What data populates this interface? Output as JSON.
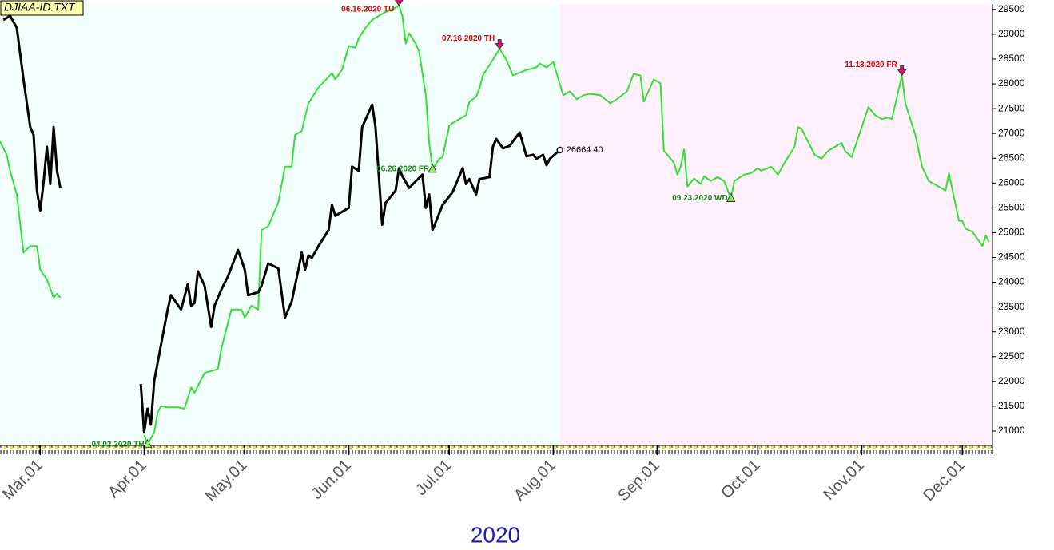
{
  "chart_data": {
    "type": "line",
    "file_label": "DJIAA-ID.TXT",
    "xlabel": "2020",
    "xlim": [
      "2020-02-18",
      "2020-12-10"
    ],
    "ylim": [
      20710,
      29610
    ],
    "yticks": [
      21000,
      21500,
      22000,
      22500,
      23000,
      23500,
      24000,
      24500,
      25000,
      25500,
      26000,
      26500,
      27000,
      27500,
      28000,
      28500,
      29000,
      29500
    ],
    "xticks": [
      {
        "value": "2020-03-01",
        "label": "Mar.01"
      },
      {
        "value": "2020-04-01",
        "label": "Apr.01"
      },
      {
        "value": "2020-05-01",
        "label": "May.01"
      },
      {
        "value": "2020-06-01",
        "label": "Jun.01"
      },
      {
        "value": "2020-07-01",
        "label": "Jul.01"
      },
      {
        "value": "2020-08-01",
        "label": "Aug.01"
      },
      {
        "value": "2020-09-01",
        "label": "Sep.01"
      },
      {
        "value": "2020-10-01",
        "label": "Oct.01"
      },
      {
        "value": "2020-11-01",
        "label": "Nov.01"
      },
      {
        "value": "2020-12-01",
        "label": "Dec.01"
      }
    ],
    "series": [
      {
        "color": "#33e033",
        "x": [
          "2020-02-18",
          "2020-02-20",
          "2020-02-21",
          "2020-02-23",
          "2020-02-25",
          "2020-02-27",
          "2020-02-29",
          "2020-03-01",
          "2020-03-03",
          "2020-03-05",
          "2020-03-06",
          "2020-03-07"
        ],
        "values": [
          26840,
          26570,
          26250,
          25770,
          24600,
          24730,
          24730,
          24250,
          24060,
          23690,
          23770,
          23690
        ]
      },
      {
        "color": "#33e033",
        "x": [
          "2020-04-01",
          "2020-04-02",
          "2020-04-04",
          "2020-04-05",
          "2020-04-06",
          "2020-04-08",
          "2020-04-11",
          "2020-04-13",
          "2020-04-15",
          "2020-04-16",
          "2020-04-19",
          "2020-04-23",
          "2020-04-24",
          "2020-04-27",
          "2020-04-30",
          "2020-05-01",
          "2020-05-03",
          "2020-05-05",
          "2020-05-06",
          "2020-05-08",
          "2020-05-11",
          "2020-05-13",
          "2020-05-15",
          "2020-05-16",
          "2020-05-18",
          "2020-05-20",
          "2020-05-23",
          "2020-05-26",
          "2020-05-27",
          "2020-05-28",
          "2020-05-30",
          "2020-06-01",
          "2020-06-03",
          "2020-06-04",
          "2020-06-06",
          "2020-06-08",
          "2020-06-10",
          "2020-06-12",
          "2020-06-14",
          "2020-06-16",
          "2020-06-17",
          "2020-06-18",
          "2020-06-19",
          "2020-06-21",
          "2020-06-22",
          "2020-06-24",
          "2020-06-25",
          "2020-06-26",
          "2020-06-28",
          "2020-06-29",
          "2020-07-01",
          "2020-07-02",
          "2020-07-04",
          "2020-07-06",
          "2020-07-07",
          "2020-07-09",
          "2020-07-10",
          "2020-07-11",
          "2020-07-16",
          "2020-07-18",
          "2020-07-20",
          "2020-07-24",
          "2020-07-27",
          "2020-07-28",
          "2020-07-30",
          "2020-08-01",
          "2020-08-04",
          "2020-08-06",
          "2020-08-08",
          "2020-08-10",
          "2020-08-12",
          "2020-08-15",
          "2020-08-18",
          "2020-08-20",
          "2020-08-23",
          "2020-08-25",
          "2020-08-27",
          "2020-08-28",
          "2020-08-31",
          "2020-09-02",
          "2020-09-03",
          "2020-09-06",
          "2020-09-07",
          "2020-09-08",
          "2020-09-09",
          "2020-09-10",
          "2020-09-12",
          "2020-09-14",
          "2020-09-15",
          "2020-09-17",
          "2020-09-19",
          "2020-09-21",
          "2020-09-23",
          "2020-09-24",
          "2020-09-27",
          "2020-09-29",
          "2020-10-01",
          "2020-10-02",
          "2020-10-05",
          "2020-10-07",
          "2020-10-09",
          "2020-10-12",
          "2020-10-13",
          "2020-10-14",
          "2020-10-18",
          "2020-10-20",
          "2020-10-22",
          "2020-10-26",
          "2020-10-27",
          "2020-10-29",
          "2020-11-03",
          "2020-11-05",
          "2020-11-07",
          "2020-11-09",
          "2020-11-10",
          "2020-11-13",
          "2020-11-14",
          "2020-11-17",
          "2020-11-19",
          "2020-11-21",
          "2020-11-24",
          "2020-11-26",
          "2020-11-27",
          "2020-11-30",
          "2020-12-01",
          "2020-12-02",
          "2020-12-04",
          "2020-12-07",
          "2020-12-08",
          "2020-12-09"
        ],
        "values": [
          20920,
          20730,
          20970,
          21370,
          21500,
          21480,
          21480,
          21450,
          21880,
          21770,
          22170,
          22250,
          22650,
          23450,
          23450,
          23290,
          23530,
          23450,
          25050,
          25130,
          25610,
          26330,
          26330,
          26970,
          27050,
          27610,
          27930,
          28140,
          28220,
          28090,
          28280,
          28760,
          28730,
          28920,
          29130,
          29290,
          29370,
          29450,
          29500,
          29580,
          29370,
          28810,
          29020,
          28810,
          28650,
          27770,
          26810,
          26280,
          26490,
          26520,
          27160,
          27210,
          27290,
          27370,
          27640,
          27740,
          27900,
          28170,
          28700,
          28490,
          28170,
          28280,
          28330,
          28410,
          28330,
          28440,
          27770,
          27850,
          27690,
          27770,
          27800,
          27770,
          27610,
          27690,
          27850,
          28200,
          28170,
          27640,
          28090,
          28010,
          26650,
          26410,
          26170,
          26330,
          26680,
          25930,
          26090,
          25980,
          26140,
          26040,
          26120,
          26040,
          25690,
          26040,
          26170,
          26200,
          26300,
          26250,
          26330,
          26170,
          26410,
          26730,
          27130,
          27100,
          26570,
          26490,
          26650,
          26810,
          26650,
          26520,
          27530,
          27370,
          27290,
          27320,
          27290,
          28170,
          27610,
          26970,
          26330,
          26040,
          25930,
          25850,
          26200,
          25240,
          25240,
          25080,
          25020,
          24730,
          24940,
          24810
        ]
      },
      {
        "color": "#000000",
        "x": [
          "2020-02-19",
          "2020-02-21",
          "2020-02-23",
          "2020-02-25",
          "2020-02-27",
          "2020-02-28",
          "2020-02-29",
          "2020-03-01",
          "2020-03-02",
          "2020-03-03",
          "2020-03-04",
          "2020-03-05",
          "2020-03-06",
          "2020-03-07"
        ],
        "values": [
          29290,
          29370,
          29130,
          28090,
          27130,
          26970,
          25850,
          25450,
          26010,
          26730,
          25980,
          27130,
          26250,
          25900
        ]
      },
      {
        "color": "#000000",
        "x": [
          "2020-03-31",
          "2020-04-01",
          "2020-04-02",
          "2020-04-03",
          "2020-04-04",
          "2020-04-06",
          "2020-04-08",
          "2020-04-09",
          "2020-04-12",
          "2020-04-14",
          "2020-04-15",
          "2020-04-16",
          "2020-04-17",
          "2020-04-19",
          "2020-04-21",
          "2020-04-22",
          "2020-04-24",
          "2020-04-26",
          "2020-04-29",
          "2020-05-01",
          "2020-05-02",
          "2020-05-05",
          "2020-05-06",
          "2020-05-08",
          "2020-05-11",
          "2020-05-13",
          "2020-05-15",
          "2020-05-17",
          "2020-05-18",
          "2020-05-19",
          "2020-05-20",
          "2020-05-21",
          "2020-05-23",
          "2020-05-26",
          "2020-05-27",
          "2020-05-28",
          "2020-06-01",
          "2020-06-02",
          "2020-06-04",
          "2020-06-05",
          "2020-06-08",
          "2020-06-09",
          "2020-06-11",
          "2020-06-12",
          "2020-06-15",
          "2020-06-16",
          "2020-06-17",
          "2020-06-19",
          "2020-06-23",
          "2020-06-24",
          "2020-06-25",
          "2020-06-26",
          "2020-06-29",
          "2020-07-02",
          "2020-07-05",
          "2020-07-06",
          "2020-07-07",
          "2020-07-09",
          "2020-07-10",
          "2020-07-13",
          "2020-07-14",
          "2020-07-15",
          "2020-07-17",
          "2020-07-19",
          "2020-07-22",
          "2020-07-24",
          "2020-07-26",
          "2020-07-27",
          "2020-07-29",
          "2020-07-30",
          "2020-07-31",
          "2020-08-03"
        ],
        "values": [
          21950,
          20970,
          21450,
          21130,
          22010,
          22730,
          23450,
          23740,
          23450,
          23960,
          23530,
          23580,
          24220,
          23930,
          23100,
          23530,
          23850,
          24120,
          24650,
          24250,
          23740,
          23800,
          23930,
          24380,
          24280,
          23290,
          23610,
          24250,
          24600,
          24250,
          24540,
          24490,
          24730,
          25050,
          25560,
          25340,
          25500,
          26330,
          26250,
          27130,
          27580,
          27130,
          25160,
          25600,
          25850,
          26300,
          26140,
          25900,
          26170,
          25500,
          25770,
          25050,
          25560,
          25820,
          26300,
          25980,
          26080,
          25770,
          26080,
          26120,
          26730,
          26890,
          26700,
          26750,
          27020,
          26540,
          26570,
          26490,
          26570,
          26360,
          26490,
          26664.4
        ]
      }
    ],
    "annotations": [
      {
        "x": "2020-04-02",
        "y": 20730,
        "label": "04.02.2020 TH",
        "kind": "low"
      },
      {
        "x": "2020-06-16",
        "y": 29580,
        "label": "06.16.2020 TU",
        "kind": "high"
      },
      {
        "x": "2020-06-26",
        "y": 26280,
        "label": "06.26.2020 FR",
        "kind": "low"
      },
      {
        "x": "2020-07-16",
        "y": 28700,
        "label": "07.16.2020 TH",
        "kind": "high"
      },
      {
        "x": "2020-09-23",
        "y": 25690,
        "label": "09.23.2020 WD",
        "kind": "low"
      },
      {
        "x": "2020-11-13",
        "y": 28170,
        "label": "11.13.2020 FR",
        "kind": "high"
      },
      {
        "x": "2020-08-03",
        "y": 26664.4,
        "label": "26664.40",
        "kind": "last"
      }
    ]
  }
}
